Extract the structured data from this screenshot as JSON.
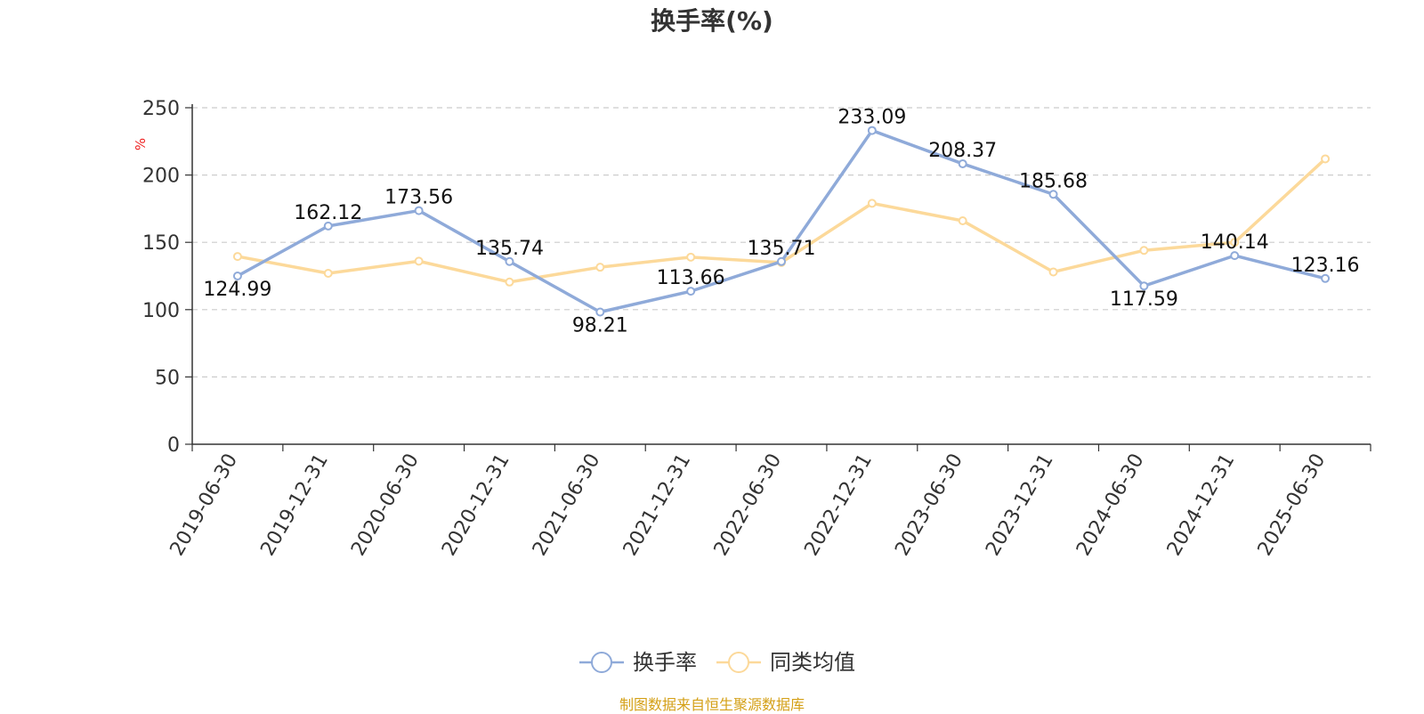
{
  "chart_data": {
    "type": "line",
    "title": "换手率(%)",
    "unit_label": "%",
    "categories": [
      "2019-06-30",
      "2019-12-31",
      "2020-06-30",
      "2020-12-31",
      "2021-06-30",
      "2021-12-31",
      "2022-06-30",
      "2022-12-31",
      "2023-06-30",
      "2023-12-31",
      "2024-06-30",
      "2024-12-31",
      "2025-06-30"
    ],
    "ylim": [
      0,
      250
    ],
    "yticks": [
      0,
      50,
      100,
      150,
      200,
      250
    ],
    "grid": true,
    "legend_position": "bottom-center",
    "series": [
      {
        "name": "换手率",
        "color": "#8faad9",
        "values": [
          124.99,
          162.12,
          173.56,
          135.74,
          98.21,
          113.66,
          135.71,
          233.09,
          208.37,
          185.68,
          117.59,
          140.14,
          123.16
        ],
        "labels": [
          "124.99",
          "162.12",
          "173.56",
          "135.74",
          "98.21",
          "113.66",
          "135.71",
          "233.09",
          "208.37",
          "185.68",
          "117.59",
          "140.14",
          "123.16"
        ]
      },
      {
        "name": "同类均值",
        "color": "#fcd99a",
        "values": [
          139.5,
          127,
          136,
          120.5,
          131.5,
          139,
          135,
          179,
          166,
          128,
          144,
          150,
          212
        ]
      }
    ]
  },
  "source_text": "制图数据来自恒生聚源数据库"
}
